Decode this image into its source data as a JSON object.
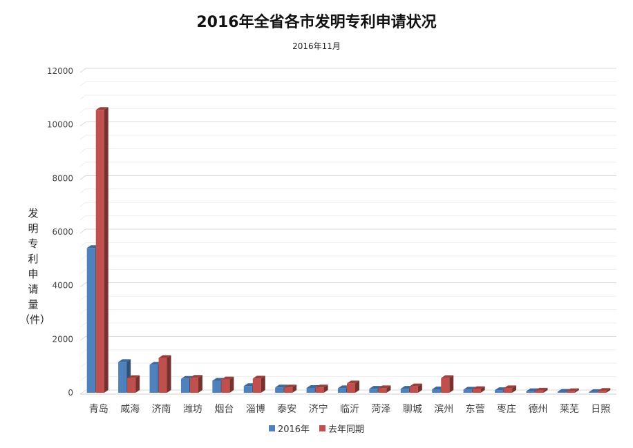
{
  "chart_data": {
    "type": "bar",
    "title": "2016年全省各市发明专利申请状况",
    "subtitle": "2016年11月",
    "ylabel": "发明专利申请量（件）",
    "xlabel": "",
    "ylim": [
      0,
      12000
    ],
    "yticks": [
      0,
      2000,
      4000,
      6000,
      8000,
      10000,
      12000
    ],
    "grid": true,
    "legend_position": "bottom",
    "categories": [
      "青岛",
      "威海",
      "济南",
      "潍坊",
      "烟台",
      "淄博",
      "泰安",
      "济宁",
      "临沂",
      "菏泽",
      "聊城",
      "滨州",
      "东营",
      "枣庄",
      "德州",
      "莱芜",
      "日照"
    ],
    "series": [
      {
        "name": "2016年",
        "color": "#4f81bd",
        "values": [
          5400,
          1150,
          1050,
          520,
          450,
          250,
          200,
          180,
          170,
          150,
          150,
          130,
          120,
          100,
          60,
          40,
          30
        ]
      },
      {
        "name": "去年同期",
        "color": "#c0504d",
        "values": [
          10550,
          550,
          1300,
          560,
          500,
          530,
          200,
          200,
          350,
          170,
          240,
          550,
          140,
          170,
          80,
          60,
          70
        ]
      }
    ]
  }
}
